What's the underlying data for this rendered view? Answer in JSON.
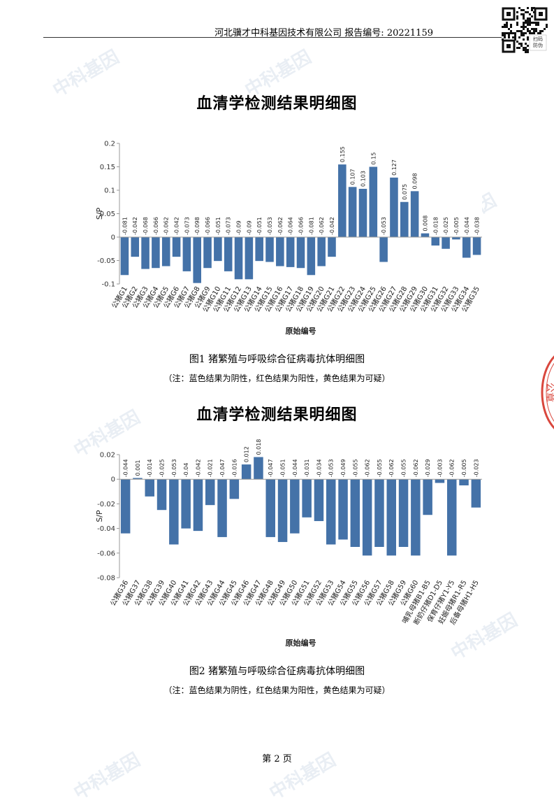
{
  "header": {
    "text": "河北骥才中科基因技术有限公司 报告编号: 20221159",
    "qr_label": "扫码防伪"
  },
  "stamp_text": "公章",
  "watermark": "中科基因",
  "charts": [
    {
      "title": "血清学检测结果明细图",
      "caption": "图1 猪繁殖与呼吸综合征病毒抗体明细图",
      "note": "（注：蓝色结果为阴性，红色结果为阳性，黄色结果为可疑）"
    },
    {
      "title": "血清学检测结果明细图",
      "caption": "图2 猪繁殖与呼吸综合征病毒抗体明细图",
      "note": "（注：蓝色结果为阴性，红色结果为阳性，黄色结果为可疑）"
    }
  ],
  "chart_data": [
    {
      "type": "bar",
      "xlabel": "原始编号",
      "ylabel": "S/P",
      "ylim": [
        -0.1,
        0.2
      ],
      "yticks": [
        -0.1,
        -0.05,
        0,
        0.05,
        0.1,
        0.15,
        0.2
      ],
      "ytick_labels": [
        "-0.1",
        "-0.05",
        "0",
        "0.05",
        "0.1",
        "0.15",
        "0.2"
      ],
      "bar_color": "#4472a8",
      "categories": [
        "公猪G1",
        "公猪G2",
        "公猪G3",
        "公猪G4",
        "公猪G5",
        "公猪G6",
        "公猪G7",
        "公猪G8",
        "公猪G9",
        "公猪G10",
        "公猪G11",
        "公猪G12",
        "公猪G13",
        "公猪G14",
        "公猪G15",
        "公猪G16",
        "公猪G17",
        "公猪G18",
        "公猪G19",
        "公猪G20",
        "公猪G21",
        "公猪G22",
        "公猪G23",
        "公猪G24",
        "公猪G25",
        "公猪G26",
        "公猪G27",
        "公猪G28",
        "公猪G29",
        "公猪G30",
        "公猪G31",
        "公猪G32",
        "公猪G33",
        "公猪G34",
        "公猪G35"
      ],
      "values": [
        -0.081,
        -0.042,
        -0.068,
        -0.066,
        -0.062,
        -0.042,
        -0.073,
        -0.098,
        -0.066,
        -0.051,
        -0.073,
        -0.09,
        -0.09,
        -0.051,
        -0.053,
        -0.062,
        -0.064,
        -0.066,
        -0.081,
        -0.062,
        -0.042,
        0.155,
        0.107,
        0.103,
        0.15,
        -0.053,
        0.127,
        0.075,
        0.098,
        0.008,
        -0.018,
        -0.025,
        -0.005,
        -0.044,
        -0.038
      ],
      "value_labels": [
        "-0.081",
        "-0.042",
        "-0.068",
        "-0.066",
        "-0.062",
        "-0.042",
        "-0.073",
        "-0.098",
        "-0.066",
        "-0.051",
        "-0.073",
        "-0.09",
        "-0.09",
        "-0.051",
        "-0.053",
        "-0.062",
        "-0.064",
        "-0.066",
        "-0.081",
        "-0.062",
        "-0.042",
        "0.155",
        "0.107",
        "0.103",
        "0.15",
        "-0.053",
        "0.127",
        "0.075",
        "0.098",
        "0.008",
        "-0.018",
        "-0.025",
        "-0.005",
        "-0.044",
        "-0.038"
      ]
    },
    {
      "type": "bar",
      "xlabel": "原始编号",
      "ylabel": "S/P",
      "ylim": [
        -0.08,
        0.02
      ],
      "yticks": [
        -0.08,
        -0.06,
        -0.04,
        -0.02,
        0,
        0.02
      ],
      "ytick_labels": [
        "-0.08",
        "-0.06",
        "-0.04",
        "-0.02",
        "0",
        "0.02"
      ],
      "bar_color": "#4472a8",
      "categories": [
        "公猪G36",
        "公猪G37",
        "公猪G38",
        "公猪G39",
        "公猪G40",
        "公猪G41",
        "公猪G42",
        "公猪G43",
        "公猪G44",
        "公猪G45",
        "公猪G46",
        "公猪G47",
        "公猪G48",
        "公猪G49",
        "公猪G50",
        "公猪G51",
        "公猪G52",
        "公猪G53",
        "公猪G54",
        "公猪G55",
        "公猪G56",
        "公猪G57",
        "公猪G58",
        "公猪G59",
        "公猪G60",
        "哺乳母猪B1-B5",
        "断奶仔猪D1-D5",
        "保育仔猪Y1-Y5",
        "妊娠母猪R1-R5",
        "后备母猪H1-H5"
      ],
      "values": [
        -0.044,
        0.001,
        -0.014,
        -0.025,
        -0.053,
        -0.04,
        -0.042,
        -0.021,
        -0.047,
        -0.016,
        0.012,
        0.018,
        -0.047,
        -0.051,
        -0.044,
        -0.031,
        -0.034,
        -0.053,
        -0.049,
        -0.055,
        -0.062,
        -0.055,
        -0.062,
        -0.055,
        -0.062,
        -0.029,
        -0.003,
        -0.062,
        -0.005,
        -0.023
      ],
      "value_labels": [
        "-0.044",
        "0.001",
        "-0.014",
        "-0.025",
        "-0.053",
        "-0.04",
        "-0.042",
        "-0.021",
        "-0.047",
        "-0.016",
        "0.012",
        "0.018",
        "-0.047",
        "-0.051",
        "-0.044",
        "-0.031",
        "-0.034",
        "-0.053",
        "-0.049",
        "-0.055",
        "-0.062",
        "-0.055",
        "-0.062",
        "-0.055",
        "-0.062",
        "-0.029",
        "-0.003",
        "-0.062",
        "-0.005",
        "-0.023"
      ]
    }
  ],
  "footer": {
    "page": "第 2 页"
  }
}
